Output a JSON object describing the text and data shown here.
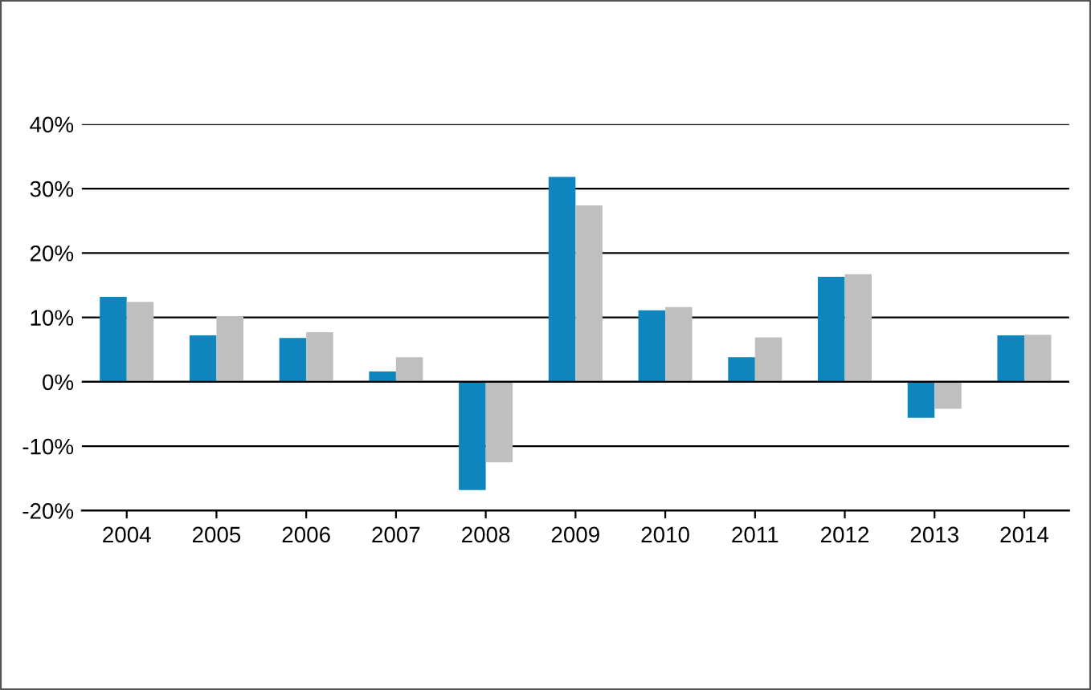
{
  "chart_data": {
    "type": "bar",
    "categories": [
      "2004",
      "2005",
      "2006",
      "2007",
      "2008",
      "2009",
      "2010",
      "2011",
      "2012",
      "2013",
      "2014"
    ],
    "series": [
      {
        "color": "#0e86bd",
        "values": [
          13.2,
          7.2,
          6.8,
          1.6,
          -16.8,
          31.8,
          11.1,
          3.8,
          16.3,
          -5.6,
          7.2
        ]
      },
      {
        "color": "#bfbfbf",
        "values": [
          12.4,
          10.2,
          7.7,
          3.8,
          -12.5,
          27.4,
          11.6,
          6.9,
          16.7,
          -4.2,
          7.3
        ]
      }
    ],
    "ylim": [
      -20,
      40
    ],
    "yticks": [
      {
        "value": -20,
        "label": "-20%"
      },
      {
        "value": -10,
        "label": "-10%"
      },
      {
        "value": 0,
        "label": "0%"
      },
      {
        "value": 10,
        "label": "10%"
      },
      {
        "value": 20,
        "label": "20%"
      },
      {
        "value": 30,
        "label": "30%"
      },
      {
        "value": 40,
        "label": "40%"
      }
    ],
    "grid": "y"
  }
}
